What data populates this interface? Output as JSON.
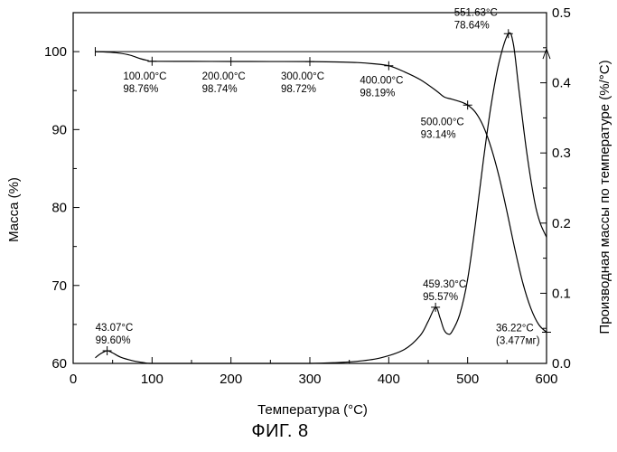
{
  "chart_data": {
    "type": "line",
    "x_axis": {
      "label": "Температура (°C)",
      "range": [
        0,
        600
      ],
      "ticks": [
        "0",
        "100",
        "200",
        "300",
        "400",
        "500",
        "600"
      ]
    },
    "y_axis_left": {
      "label": "Масса (%)",
      "range": [
        60,
        105
      ],
      "ticks": [
        "60",
        "70",
        "80",
        "90",
        "100"
      ]
    },
    "y_axis_right": {
      "label": "Производная массы по температуре (%/°C)",
      "range": [
        0,
        0.5
      ],
      "ticks": [
        "0.0",
        "0.1",
        "0.2",
        "0.3",
        "0.4",
        "0.5"
      ]
    },
    "grid": false,
    "series": [
      {
        "axis": "left",
        "x": [
          28,
          50,
          70,
          85,
          95,
          100,
          150,
          200,
          250,
          300,
          330,
          360,
          380,
          400,
          420,
          440,
          460,
          470,
          480,
          490,
          500,
          510,
          520,
          530,
          540,
          550,
          560,
          570,
          580,
          590,
          600
        ],
        "y": [
          100.0,
          99.9,
          99.6,
          99.1,
          98.85,
          98.76,
          98.75,
          98.74,
          98.73,
          98.72,
          98.68,
          98.6,
          98.45,
          98.19,
          97.4,
          96.4,
          95.0,
          94.2,
          93.9,
          93.6,
          93.14,
          92.2,
          90.4,
          87.6,
          83.9,
          79.4,
          74.6,
          70.3,
          67.1,
          65.0,
          64.0
        ]
      },
      {
        "axis": "right",
        "x": [
          28,
          35,
          43.07,
          50,
          60,
          75,
          90,
          100,
          150,
          200,
          250,
          300,
          330,
          360,
          390,
          420,
          440,
          450,
          459.3,
          465,
          470,
          475,
          480,
          490,
          500,
          510,
          520,
          530,
          540,
          551.63,
          558,
          565,
          575,
          585,
          592,
          600
        ],
        "y": [
          0.008,
          0.014,
          0.018,
          0.015,
          0.009,
          0.004,
          0.001,
          0.0,
          0.0,
          0.0,
          0.0,
          0.0,
          0.001,
          0.003,
          0.008,
          0.02,
          0.04,
          0.06,
          0.08,
          0.065,
          0.048,
          0.042,
          0.045,
          0.07,
          0.12,
          0.2,
          0.29,
          0.37,
          0.43,
          0.47,
          0.455,
          0.39,
          0.3,
          0.23,
          0.2,
          0.18
        ]
      }
    ],
    "reference_line": {
      "axis": "left",
      "y": 100.0,
      "x_range": [
        28,
        600
      ]
    },
    "annotations": [
      {
        "x": 100,
        "y": 98.76,
        "axis": "left",
        "lines": [
          "100.00°C",
          "98.76%"
        ]
      },
      {
        "x": 200,
        "y": 98.74,
        "axis": "left",
        "lines": [
          "200.00°C",
          "98.74%"
        ]
      },
      {
        "x": 300,
        "y": 98.72,
        "axis": "left",
        "lines": [
          "300.00°C",
          "98.72%"
        ]
      },
      {
        "x": 400,
        "y": 98.19,
        "axis": "left",
        "lines": [
          "400.00°C",
          "98.19%"
        ]
      },
      {
        "x": 500,
        "y": 93.14,
        "axis": "left",
        "lines": [
          "500.00°C",
          "93.14%"
        ]
      },
      {
        "x": 600,
        "y": 64.0,
        "axis": "left",
        "lines": [
          "36.22°C",
          "(3.477мг)"
        ]
      },
      {
        "x": 43.07,
        "y": 0.018,
        "axis": "right",
        "lines": [
          "43.07°C",
          "99.60%"
        ]
      },
      {
        "x": 459.3,
        "y": 0.08,
        "axis": "right",
        "lines": [
          "459.30°C",
          "95.57%"
        ]
      },
      {
        "x": 551.63,
        "y": 0.47,
        "axis": "right",
        "lines": [
          "551.63°C",
          "78.64%"
        ]
      }
    ]
  },
  "caption": "ФИГ. 8"
}
